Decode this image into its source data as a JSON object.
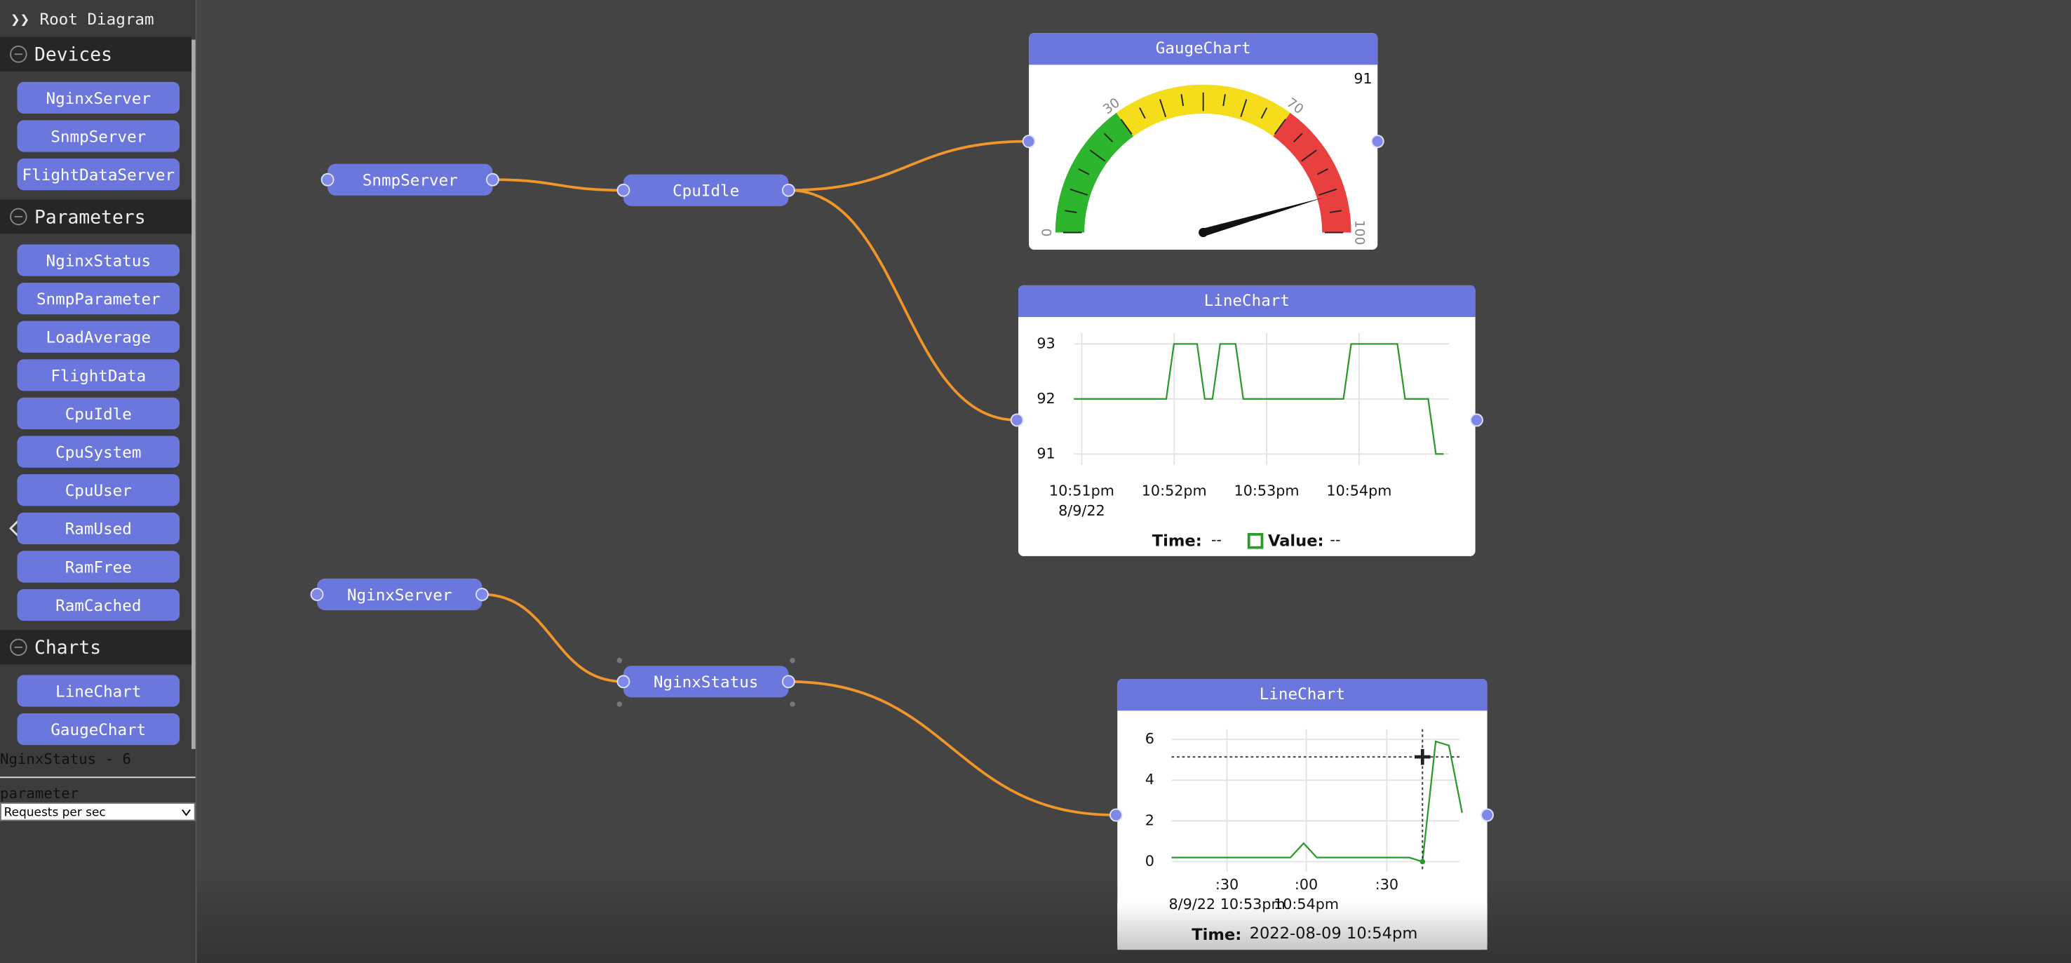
{
  "sidebar": {
    "title": "Root Diagram",
    "sections": [
      {
        "name": "Devices",
        "items": [
          "NginxServer",
          "SnmpServer",
          "FlightDataServer"
        ]
      },
      {
        "name": "Parameters",
        "items": [
          "NginxStatus",
          "SnmpParameter",
          "LoadAverage",
          "FlightData",
          "CpuIdle",
          "CpuSystem",
          "CpuUser",
          "RamUsed",
          "RamFree",
          "RamCached"
        ]
      },
      {
        "name": "Charts",
        "items": [
          "LineChart",
          "GaugeChart"
        ]
      }
    ],
    "status": "NginxStatus - 6",
    "field_label": "parameter",
    "select_value": "Requests per sec"
  },
  "nodes": [
    "SnmpServer",
    "CpuIdle",
    "NginxServer",
    "NginxStatus"
  ],
  "gauge": {
    "title": "GaugeChart",
    "value": 91,
    "min": 0,
    "max": 100,
    "ticks": [
      0,
      30,
      70,
      100
    ],
    "bands": [
      {
        "from": 0,
        "to": 30,
        "color": "#2db52d"
      },
      {
        "from": 30,
        "to": 70,
        "color": "#f5dd1c"
      },
      {
        "from": 70,
        "to": 100,
        "color": "#e8403f"
      }
    ]
  },
  "line_charts": [
    {
      "title": "LineChart",
      "color": "#2a9a2a",
      "ylim": [
        90.8,
        93.2
      ],
      "yticks": [
        91,
        92,
        93
      ],
      "xtick_labels": [
        "10:51pm",
        "10:52pm",
        "10:53pm",
        "10:54pm"
      ],
      "xtick_sublabels": [
        "8/9/22",
        null,
        null,
        null
      ],
      "values": [
        92,
        92,
        92,
        92,
        92,
        92,
        92,
        92,
        92,
        92,
        92,
        92,
        92,
        93,
        93,
        93,
        93,
        92,
        92,
        93,
        93,
        93,
        92,
        92,
        92,
        92,
        92,
        92,
        92,
        92,
        92,
        92,
        92,
        92,
        92,
        92,
        93,
        93,
        93,
        93,
        93,
        93,
        93,
        92,
        92,
        92,
        92,
        91,
        91
      ],
      "footer": {
        "time_label": "Time:",
        "time_value": "--",
        "value_label": "Value:",
        "value_value": "--"
      }
    },
    {
      "title": "LineChart",
      "color": "#2a9a2a",
      "ylim": [
        -0.5,
        6.5
      ],
      "yticks": [
        0,
        2,
        4,
        6
      ],
      "xtick_labels": [
        ":30",
        ":00",
        ":30"
      ],
      "xtick_sublabels": [
        "8/9/22 10:53pm",
        "10:54pm",
        null
      ],
      "values": [
        0.2,
        0.2,
        0.2,
        0.2,
        0.2,
        0.2,
        0.2,
        0.2,
        0.2,
        0.2,
        0.9,
        0.2,
        0.2,
        0.2,
        0.2,
        0.2,
        0.2,
        0.2,
        0.2,
        0,
        5.9,
        5.7,
        2.4
      ],
      "footer": {
        "time_label": "Time:",
        "time_value": "2022-08-09 10:54pm"
      }
    }
  ]
}
